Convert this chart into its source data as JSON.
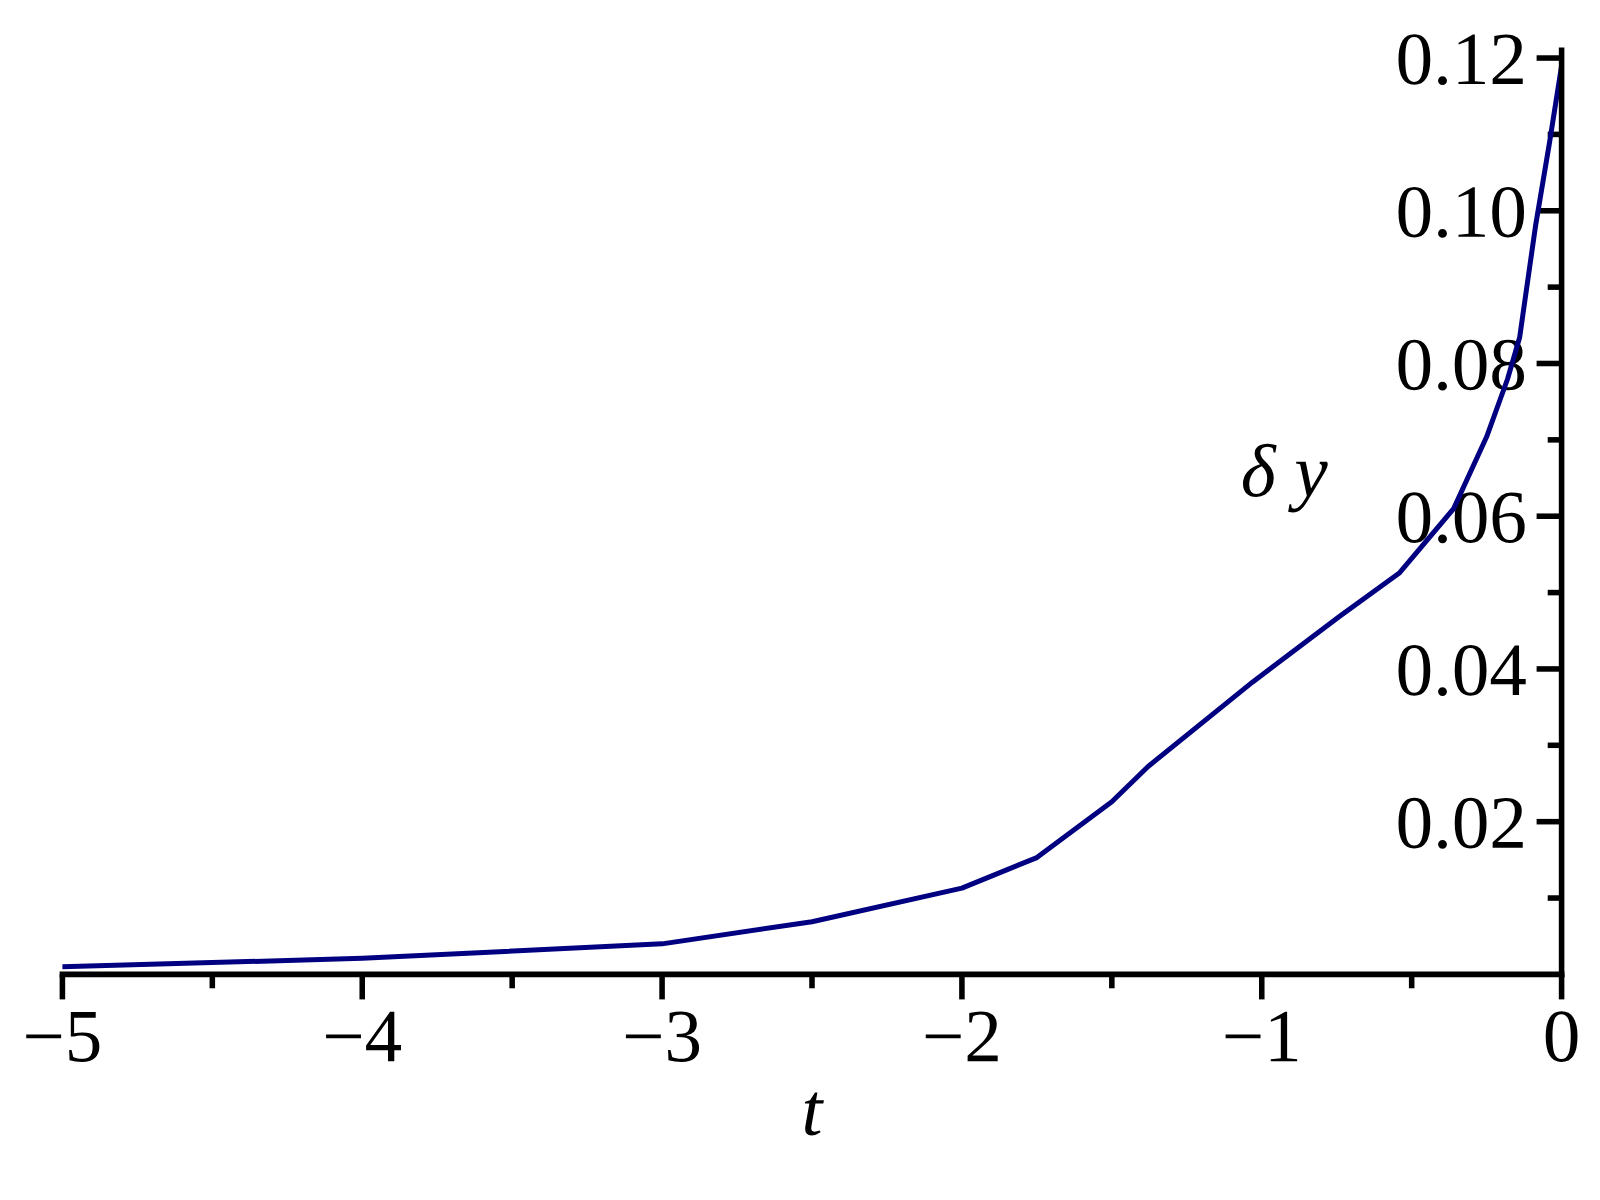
{
  "chart_data": {
    "type": "line",
    "xlabel": "t",
    "ylabel": "δ y",
    "x": [
      -5,
      -4,
      -3,
      -2.5,
      -2,
      -1.75,
      -1.5,
      -1.38,
      -1.03,
      -0.74,
      -0.54,
      -0.36,
      -0.25,
      -0.18,
      -0.14,
      -0.087,
      -0.04,
      0
    ],
    "series": [
      {
        "color": "#000080",
        "values": [
          0.001,
          0.0021,
          0.004,
          0.0069,
          0.0113,
          0.0153,
          0.0226,
          0.0272,
          0.0383,
          0.0469,
          0.0526,
          0.061,
          0.0704,
          0.078,
          0.0834,
          0.098,
          0.109,
          0.119
        ]
      }
    ],
    "xlim": [
      -5,
      0
    ],
    "ylim": [
      0,
      0.121
    ],
    "xticks": [
      {
        "value": -5,
        "label": "−5"
      },
      {
        "value": -4.5,
        "label": null
      },
      {
        "value": -4,
        "label": "−4"
      },
      {
        "value": -3.5,
        "label": null
      },
      {
        "value": -3,
        "label": "−3"
      },
      {
        "value": -2.5,
        "label": null
      },
      {
        "value": -2,
        "label": "−2"
      },
      {
        "value": -1.5,
        "label": null
      },
      {
        "value": -1,
        "label": "−1"
      },
      {
        "value": -0.5,
        "label": null
      },
      0
    ],
    "yticks": [
      {
        "value": 0.01,
        "label": null
      },
      0.02,
      {
        "value": 0.03,
        "label": null
      },
      0.04,
      {
        "value": 0.05,
        "label": null
      },
      0.06,
      {
        "value": 0.07,
        "label": null
      },
      0.08,
      {
        "value": 0.09,
        "label": null
      },
      {
        "value": 0.1,
        "label": "0.10"
      },
      {
        "value": 0.11,
        "label": null
      },
      0.12
    ],
    "grid": false,
    "legend": false,
    "marker": "none",
    "line_style": "solid"
  }
}
